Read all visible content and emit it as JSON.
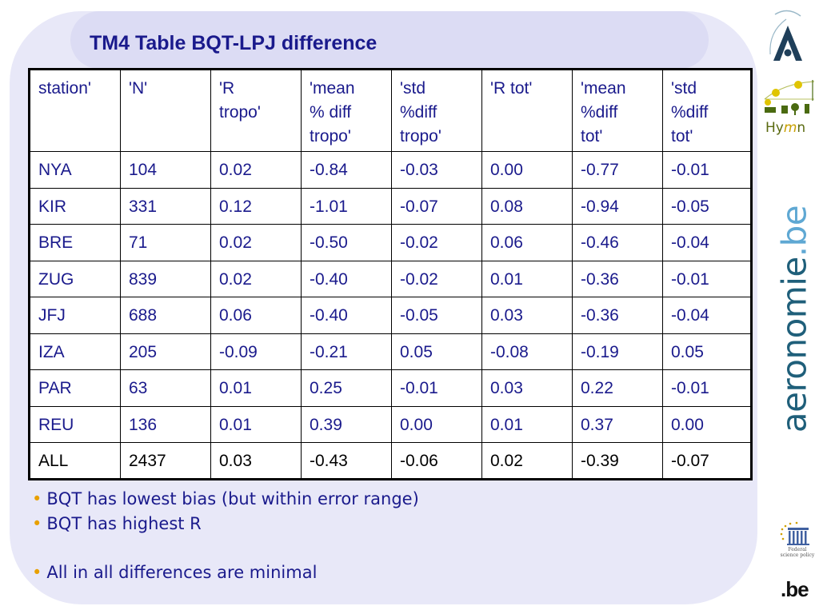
{
  "title": "TM4 Table BQT-LPJ difference",
  "table": {
    "headers": [
      "station'",
      "'N'",
      "'R tropo'",
      "'mean % diff tropo'",
      "'std %diff tropo'",
      "'R tot'",
      "'mean %diff tot'",
      "'std %diff tot'"
    ],
    "header_lines": [
      [
        "station'"
      ],
      [
        "'N'"
      ],
      [
        "'R",
        "tropo'"
      ],
      [
        "'mean",
        "% diff",
        "tropo'"
      ],
      [
        "'std",
        "%diff",
        "tropo'"
      ],
      [
        "'R tot'"
      ],
      [
        "'mean",
        "%diff",
        "tot'"
      ],
      [
        "'std",
        "%diff",
        "tot'"
      ]
    ],
    "rows": [
      [
        "NYA",
        "104",
        "0.02",
        "-0.84",
        "-0.03",
        "0.00",
        "-0.77",
        "-0.01"
      ],
      [
        "KIR",
        "331",
        "0.12",
        "-1.01",
        "-0.07",
        "0.08",
        "-0.94",
        "-0.05"
      ],
      [
        "BRE",
        "71",
        "0.02",
        "-0.50",
        "-0.02",
        "0.06",
        "-0.46",
        "-0.04"
      ],
      [
        "ZUG",
        "839",
        "0.02",
        "-0.40",
        "-0.02",
        "0.01",
        "-0.36",
        "-0.01"
      ],
      [
        "JFJ",
        "688",
        "0.06",
        "-0.40",
        "-0.05",
        "0.03",
        "-0.36",
        "-0.04"
      ],
      [
        "IZA",
        "205",
        "-0.09",
        "-0.21",
        "0.05",
        "-0.08",
        "-0.19",
        "0.05"
      ],
      [
        "PAR",
        "63",
        "0.01",
        "0.25",
        "-0.01",
        "0.03",
        "0.22",
        "-0.01"
      ],
      [
        "REU",
        "136",
        "0.01",
        "0.39",
        "0.00",
        "0.01",
        "0.37",
        "0.00"
      ],
      [
        "ALL",
        "2437",
        "0.03",
        "-0.43",
        "-0.06",
        "0.02",
        "-0.39",
        "-0.07"
      ]
    ]
  },
  "bullets": [
    "BQT has lowest bias (but within error range)",
    "BQT has highest R",
    "All in all differences are minimal"
  ],
  "bullet_marker": "•",
  "logos": {
    "hymn_prefix": "Hy",
    "hymn_m": "m",
    "hymn_suffix": "n",
    "site_name": "aeronomie",
    "site_tld": ".be",
    "belspo_text": "Federal science policy",
    "be_logo": ".be"
  },
  "colors": {
    "title": "#1a1a8c",
    "table_text": "#1a1a8c",
    "panel_background": "#e8e8f8",
    "bullet_dot": "#e8a000",
    "site_name": "#1f5f7a",
    "site_tld": "#5fa8d3"
  },
  "icons": [
    "aeronomie-logo-icon",
    "hymn-logo-icon",
    "belspo-logo-icon"
  ]
}
